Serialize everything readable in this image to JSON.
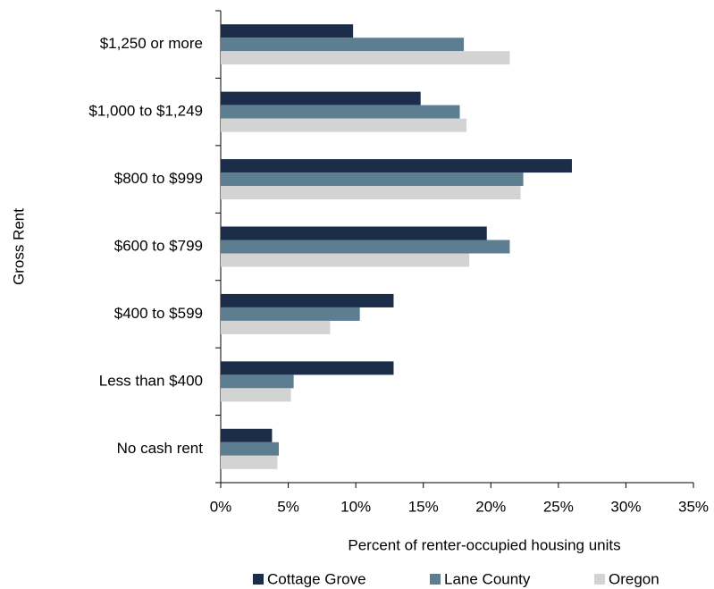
{
  "chart_data": {
    "type": "hbar",
    "y_label": "Gross Rent",
    "x_label": "Percent of renter-occupied housing units",
    "categories": [
      "$1,250 or more",
      "$1,000 to $1,249",
      "$800 to $999",
      "$600 to $799",
      "$400 to $599",
      "Less than $400",
      "No cash rent"
    ],
    "series": [
      {
        "name": "Cottage Grove",
        "color": "#1b2d48",
        "values": [
          9.8,
          14.8,
          26.0,
          19.7,
          12.8,
          12.8,
          3.8
        ]
      },
      {
        "name": "Lane County",
        "color": "#5d7e90",
        "values": [
          18.0,
          17.7,
          22.4,
          21.4,
          10.3,
          5.4,
          4.3
        ]
      },
      {
        "name": "Oregon",
        "color": "#d3d3d3",
        "values": [
          21.4,
          18.2,
          22.2,
          18.4,
          8.1,
          5.2,
          4.2
        ]
      }
    ],
    "xlim": [
      0,
      35
    ],
    "xticks": [
      {
        "value": 0,
        "label": "0%"
      },
      {
        "value": 5,
        "label": "5%"
      },
      {
        "value": 10,
        "label": "10%"
      },
      {
        "value": 15,
        "label": "15%"
      },
      {
        "value": 20,
        "label": "20%"
      },
      {
        "value": 25,
        "label": "25%"
      },
      {
        "value": 30,
        "label": "30%"
      },
      {
        "value": 35,
        "label": "35%"
      }
    ],
    "grid": false,
    "legend": "bottom"
  }
}
